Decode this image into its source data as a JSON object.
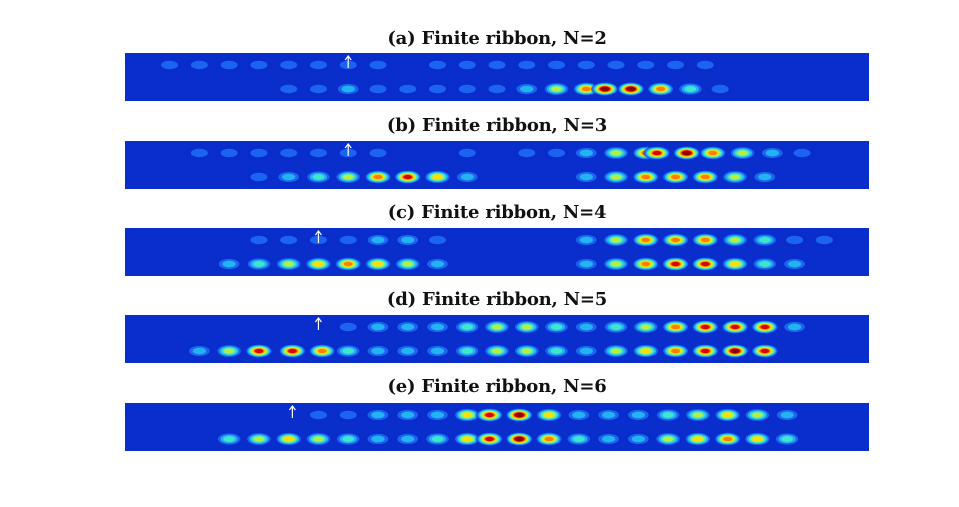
{
  "colors": {
    "background_field": "#0a2ecc",
    "colormap": [
      "#0a2ecc",
      "#1e66f0",
      "#22b8f0",
      "#44e8c8",
      "#b8f040",
      "#ffdc00",
      "#ff7a00",
      "#d20000",
      "#8c0000"
    ]
  },
  "icons": {
    "marker": "up-arrow-icon"
  },
  "chart_data": [
    {
      "type": "heatmap",
      "title": "(a) Finite ribbon, N=2",
      "marker_x": 0.3,
      "rows": [
        {
          "row": "top",
          "peaks": [
            {
              "x": 0.06,
              "intensity": 0.12
            },
            {
              "x": 0.1,
              "intensity": 0.13
            },
            {
              "x": 0.14,
              "intensity": 0.14
            },
            {
              "x": 0.18,
              "intensity": 0.15
            },
            {
              "x": 0.22,
              "intensity": 0.14
            },
            {
              "x": 0.26,
              "intensity": 0.13
            },
            {
              "x": 0.3,
              "intensity": 0.14
            },
            {
              "x": 0.34,
              "intensity": 0.13
            },
            {
              "x": 0.42,
              "intensity": 0.14
            },
            {
              "x": 0.46,
              "intensity": 0.13
            },
            {
              "x": 0.5,
              "intensity": 0.12
            },
            {
              "x": 0.54,
              "intensity": 0.13
            },
            {
              "x": 0.58,
              "intensity": 0.12
            },
            {
              "x": 0.62,
              "intensity": 0.13
            },
            {
              "x": 0.66,
              "intensity": 0.12
            },
            {
              "x": 0.7,
              "intensity": 0.12
            },
            {
              "x": 0.74,
              "intensity": 0.11
            },
            {
              "x": 0.78,
              "intensity": 0.11
            }
          ]
        },
        {
          "row": "bottom",
          "peaks": [
            {
              "x": 0.22,
              "intensity": 0.16
            },
            {
              "x": 0.26,
              "intensity": 0.18
            },
            {
              "x": 0.3,
              "intensity": 0.2
            },
            {
              "x": 0.34,
              "intensity": 0.18
            },
            {
              "x": 0.38,
              "intensity": 0.16
            },
            {
              "x": 0.42,
              "intensity": 0.14
            },
            {
              "x": 0.46,
              "intensity": 0.16
            },
            {
              "x": 0.5,
              "intensity": 0.18
            },
            {
              "x": 0.54,
              "intensity": 0.3
            },
            {
              "x": 0.58,
              "intensity": 0.55
            },
            {
              "x": 0.62,
              "intensity": 0.8
            },
            {
              "x": 0.645,
              "intensity": 0.98
            },
            {
              "x": 0.68,
              "intensity": 0.95
            },
            {
              "x": 0.72,
              "intensity": 0.7
            },
            {
              "x": 0.76,
              "intensity": 0.4
            },
            {
              "x": 0.8,
              "intensity": 0.18
            }
          ]
        }
      ]
    },
    {
      "type": "heatmap",
      "title": "(b) Finite ribbon, N=3",
      "marker_x": 0.3,
      "rows": [
        {
          "row": "top",
          "peaks": [
            {
              "x": 0.1,
              "intensity": 0.12
            },
            {
              "x": 0.14,
              "intensity": 0.13
            },
            {
              "x": 0.18,
              "intensity": 0.14
            },
            {
              "x": 0.22,
              "intensity": 0.14
            },
            {
              "x": 0.26,
              "intensity": 0.16
            },
            {
              "x": 0.3,
              "intensity": 0.18
            },
            {
              "x": 0.34,
              "intensity": 0.16
            },
            {
              "x": 0.46,
              "intensity": 0.12
            },
            {
              "x": 0.54,
              "intensity": 0.14
            },
            {
              "x": 0.58,
              "intensity": 0.18
            },
            {
              "x": 0.62,
              "intensity": 0.3
            },
            {
              "x": 0.66,
              "intensity": 0.55
            },
            {
              "x": 0.7,
              "intensity": 0.75
            },
            {
              "x": 0.715,
              "intensity": 0.92
            },
            {
              "x": 0.755,
              "intensity": 0.95
            },
            {
              "x": 0.79,
              "intensity": 0.75
            },
            {
              "x": 0.83,
              "intensity": 0.5
            },
            {
              "x": 0.87,
              "intensity": 0.25
            },
            {
              "x": 0.91,
              "intensity": 0.14
            }
          ]
        },
        {
          "row": "bottom",
          "peaks": [
            {
              "x": 0.18,
              "intensity": 0.18
            },
            {
              "x": 0.22,
              "intensity": 0.25
            },
            {
              "x": 0.26,
              "intensity": 0.4
            },
            {
              "x": 0.3,
              "intensity": 0.55
            },
            {
              "x": 0.34,
              "intensity": 0.75
            },
            {
              "x": 0.38,
              "intensity": 0.82
            },
            {
              "x": 0.42,
              "intensity": 0.6
            },
            {
              "x": 0.46,
              "intensity": 0.3
            },
            {
              "x": 0.62,
              "intensity": 0.25
            },
            {
              "x": 0.66,
              "intensity": 0.45
            },
            {
              "x": 0.7,
              "intensity": 0.7
            },
            {
              "x": 0.74,
              "intensity": 0.8
            },
            {
              "x": 0.78,
              "intensity": 0.7
            },
            {
              "x": 0.82,
              "intensity": 0.5
            },
            {
              "x": 0.86,
              "intensity": 0.3
            }
          ]
        }
      ]
    },
    {
      "type": "heatmap",
      "title": "(c) Finite ribbon, N=4",
      "marker_x": 0.26,
      "rows": [
        {
          "row": "top",
          "peaks": [
            {
              "x": 0.18,
              "intensity": 0.12
            },
            {
              "x": 0.22,
              "intensity": 0.13
            },
            {
              "x": 0.26,
              "intensity": 0.14
            },
            {
              "x": 0.3,
              "intensity": 0.18
            },
            {
              "x": 0.34,
              "intensity": 0.25
            },
            {
              "x": 0.38,
              "intensity": 0.22
            },
            {
              "x": 0.42,
              "intensity": 0.13
            },
            {
              "x": 0.62,
              "intensity": 0.2
            },
            {
              "x": 0.66,
              "intensity": 0.45
            },
            {
              "x": 0.7,
              "intensity": 0.7
            },
            {
              "x": 0.74,
              "intensity": 0.8
            },
            {
              "x": 0.78,
              "intensity": 0.72
            },
            {
              "x": 0.82,
              "intensity": 0.55
            },
            {
              "x": 0.86,
              "intensity": 0.35
            },
            {
              "x": 0.9,
              "intensity": 0.18
            },
            {
              "x": 0.94,
              "intensity": 0.12
            }
          ]
        },
        {
          "row": "bottom",
          "peaks": [
            {
              "x": 0.14,
              "intensity": 0.22
            },
            {
              "x": 0.18,
              "intensity": 0.4
            },
            {
              "x": 0.22,
              "intensity": 0.55
            },
            {
              "x": 0.26,
              "intensity": 0.62
            },
            {
              "x": 0.3,
              "intensity": 0.7
            },
            {
              "x": 0.34,
              "intensity": 0.62
            },
            {
              "x": 0.38,
              "intensity": 0.5
            },
            {
              "x": 0.42,
              "intensity": 0.3
            },
            {
              "x": 0.62,
              "intensity": 0.25
            },
            {
              "x": 0.66,
              "intensity": 0.55
            },
            {
              "x": 0.7,
              "intensity": 0.8
            },
            {
              "x": 0.74,
              "intensity": 0.92
            },
            {
              "x": 0.78,
              "intensity": 0.85
            },
            {
              "x": 0.82,
              "intensity": 0.62
            },
            {
              "x": 0.86,
              "intensity": 0.4
            },
            {
              "x": 0.9,
              "intensity": 0.2
            }
          ]
        }
      ]
    },
    {
      "type": "heatmap",
      "title": "(d) Finite ribbon, N=5",
      "marker_x": 0.26,
      "rows": [
        {
          "row": "top",
          "peaks": [
            {
              "x": 0.3,
              "intensity": 0.16
            },
            {
              "x": 0.34,
              "intensity": 0.2
            },
            {
              "x": 0.38,
              "intensity": 0.22
            },
            {
              "x": 0.42,
              "intensity": 0.25
            },
            {
              "x": 0.46,
              "intensity": 0.4
            },
            {
              "x": 0.5,
              "intensity": 0.5
            },
            {
              "x": 0.54,
              "intensity": 0.45
            },
            {
              "x": 0.58,
              "intensity": 0.35
            },
            {
              "x": 0.62,
              "intensity": 0.25
            },
            {
              "x": 0.66,
              "intensity": 0.35
            },
            {
              "x": 0.7,
              "intensity": 0.55
            },
            {
              "x": 0.74,
              "intensity": 0.75
            },
            {
              "x": 0.78,
              "intensity": 0.82
            },
            {
              "x": 0.82,
              "intensity": 0.92
            },
            {
              "x": 0.86,
              "intensity": 0.85
            },
            {
              "x": 0.9,
              "intensity": 0.3
            }
          ]
        },
        {
          "row": "bottom",
          "peaks": [
            {
              "x": 0.1,
              "intensity": 0.25
            },
            {
              "x": 0.14,
              "intensity": 0.55
            },
            {
              "x": 0.18,
              "intensity": 0.85
            },
            {
              "x": 0.225,
              "intensity": 0.92
            },
            {
              "x": 0.265,
              "intensity": 0.7
            },
            {
              "x": 0.3,
              "intensity": 0.35
            },
            {
              "x": 0.34,
              "intensity": 0.22
            },
            {
              "x": 0.38,
              "intensity": 0.2
            },
            {
              "x": 0.42,
              "intensity": 0.25
            },
            {
              "x": 0.46,
              "intensity": 0.4
            },
            {
              "x": 0.5,
              "intensity": 0.5
            },
            {
              "x": 0.54,
              "intensity": 0.45
            },
            {
              "x": 0.58,
              "intensity": 0.35
            },
            {
              "x": 0.62,
              "intensity": 0.3
            },
            {
              "x": 0.66,
              "intensity": 0.45
            },
            {
              "x": 0.7,
              "intensity": 0.6
            },
            {
              "x": 0.74,
              "intensity": 0.75
            },
            {
              "x": 0.78,
              "intensity": 0.85
            },
            {
              "x": 0.82,
              "intensity": 0.95
            },
            {
              "x": 0.86,
              "intensity": 0.88
            }
          ]
        }
      ]
    },
    {
      "type": "heatmap",
      "title": "(e) Finite ribbon, N=6",
      "marker_x": 0.225,
      "rows": [
        {
          "row": "top",
          "peaks": [
            {
              "x": 0.26,
              "intensity": 0.13
            },
            {
              "x": 0.3,
              "intensity": 0.16
            },
            {
              "x": 0.34,
              "intensity": 0.22
            },
            {
              "x": 0.38,
              "intensity": 0.25
            },
            {
              "x": 0.42,
              "intensity": 0.3
            },
            {
              "x": 0.46,
              "intensity": 0.6
            },
            {
              "x": 0.49,
              "intensity": 0.9
            },
            {
              "x": 0.53,
              "intensity": 0.95
            },
            {
              "x": 0.57,
              "intensity": 0.65
            },
            {
              "x": 0.61,
              "intensity": 0.3
            },
            {
              "x": 0.65,
              "intensity": 0.22
            },
            {
              "x": 0.69,
              "intensity": 0.25
            },
            {
              "x": 0.73,
              "intensity": 0.4
            },
            {
              "x": 0.77,
              "intensity": 0.55
            },
            {
              "x": 0.81,
              "intensity": 0.62
            },
            {
              "x": 0.85,
              "intensity": 0.55
            },
            {
              "x": 0.89,
              "intensity": 0.3
            }
          ]
        },
        {
          "row": "bottom",
          "peaks": [
            {
              "x": 0.14,
              "intensity": 0.35
            },
            {
              "x": 0.18,
              "intensity": 0.55
            },
            {
              "x": 0.22,
              "intensity": 0.65
            },
            {
              "x": 0.26,
              "intensity": 0.55
            },
            {
              "x": 0.3,
              "intensity": 0.35
            },
            {
              "x": 0.34,
              "intensity": 0.25
            },
            {
              "x": 0.38,
              "intensity": 0.25
            },
            {
              "x": 0.42,
              "intensity": 0.4
            },
            {
              "x": 0.46,
              "intensity": 0.65
            },
            {
              "x": 0.49,
              "intensity": 0.92
            },
            {
              "x": 0.53,
              "intensity": 0.95
            },
            {
              "x": 0.57,
              "intensity": 0.7
            },
            {
              "x": 0.61,
              "intensity": 0.4
            },
            {
              "x": 0.65,
              "intensity": 0.25
            },
            {
              "x": 0.69,
              "intensity": 0.3
            },
            {
              "x": 0.73,
              "intensity": 0.5
            },
            {
              "x": 0.77,
              "intensity": 0.62
            },
            {
              "x": 0.81,
              "intensity": 0.7
            },
            {
              "x": 0.85,
              "intensity": 0.6
            },
            {
              "x": 0.89,
              "intensity": 0.35
            }
          ]
        }
      ]
    }
  ]
}
